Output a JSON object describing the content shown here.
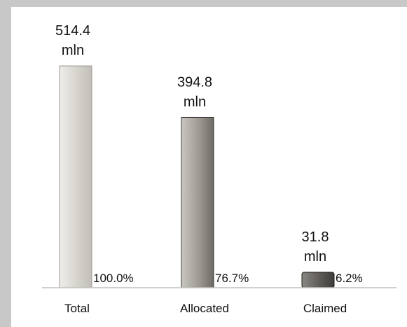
{
  "chart_data": {
    "type": "bar",
    "title": "",
    "xlabel": "",
    "ylabel": "",
    "categories": [
      "Total",
      "Allocated",
      "Claimed"
    ],
    "values": [
      514.4,
      394.8,
      31.8
    ],
    "value_labels": [
      "514.4",
      "394.8",
      "31.8"
    ],
    "unit_label": "mln",
    "percent_labels": [
      "100.0%",
      "76.7%",
      "6.2%"
    ],
    "ylim": [
      0,
      514.4
    ],
    "grid": false,
    "legend": "none",
    "colors": {
      "Total": {
        "light": "#f0eeea",
        "mid": "#d6d3cd",
        "dark": "#c2bfb9",
        "stroke": "#9c9992"
      },
      "Allocated": {
        "light": "#c9c6c1",
        "mid": "#9e9a93",
        "dark": "#6d6963",
        "stroke": "#3c3a37"
      },
      "Claimed": {
        "light": "#8a8782",
        "mid": "#5e5b56",
        "dark": "#3e3c39",
        "stroke": "#1e1d1b"
      }
    },
    "axis_color": "#c0c0c0"
  }
}
